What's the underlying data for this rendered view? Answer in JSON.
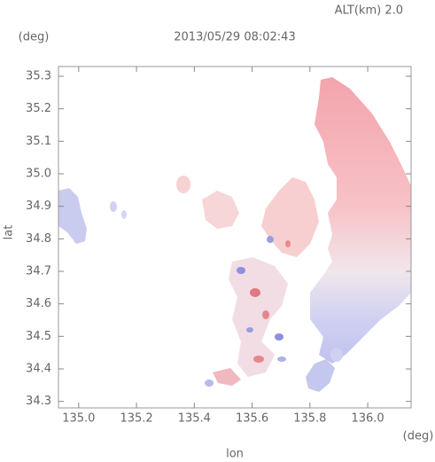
{
  "chart_data": {
    "type": "map",
    "title": "2013/05/29 08:02:43",
    "subtitle": "ALT(km) 2.0",
    "xlabel": "lon",
    "ylabel": "lat",
    "xunit": "(deg)",
    "yunit": "(deg)",
    "xlim": [
      134.93,
      136.15
    ],
    "ylim": [
      34.28,
      35.33
    ],
    "xticks": [
      {
        "value": 135,
        "label": "135.0"
      },
      135.2,
      135.4,
      135.6,
      135.8,
      {
        "value": 136,
        "label": "136.0"
      }
    ],
    "yticks": [
      34.3,
      34.4,
      34.5,
      34.6,
      34.7,
      34.8,
      34.9,
      {
        "value": 35,
        "label": "35.0"
      },
      35.1,
      35.2,
      35.3
    ]
  }
}
